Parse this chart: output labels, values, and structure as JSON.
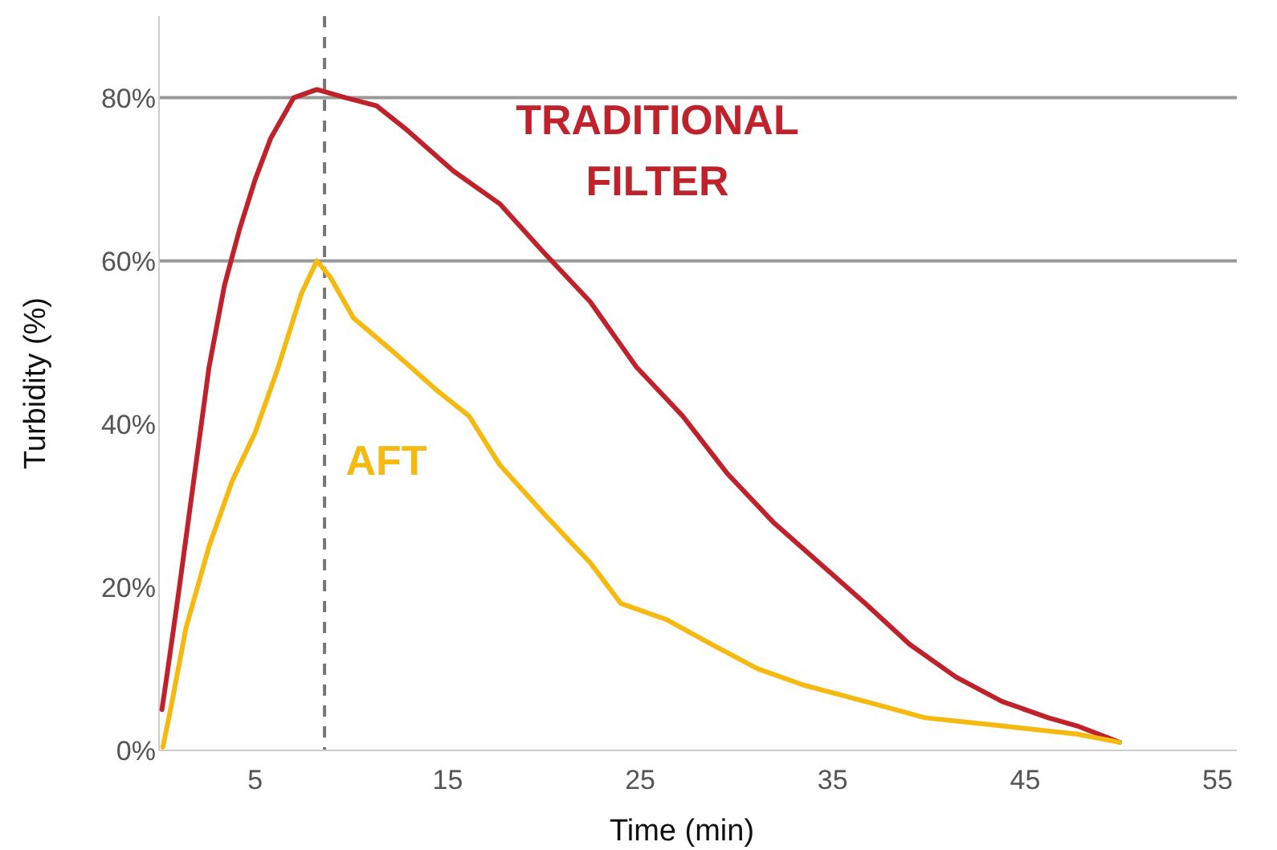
{
  "chart_data": {
    "type": "line",
    "xlabel": "Time (min)",
    "ylabel": "Turbidity (%)",
    "xlim": [
      0,
      56
    ],
    "ylim": [
      0,
      90
    ],
    "xticks": [
      5,
      15,
      25,
      35,
      45,
      55
    ],
    "yticks": [
      {
        "value": 0,
        "label": "0%"
      },
      {
        "value": 20,
        "label": "20%"
      },
      {
        "value": 40,
        "label": "40%"
      },
      {
        "value": 60,
        "label": "60%"
      },
      {
        "value": 80,
        "label": "80%"
      }
    ],
    "line_style": "solid",
    "marker": "none",
    "ref_lines": [
      {
        "axis": "y",
        "value": 60,
        "color": "#999999",
        "line_style": "solid"
      },
      {
        "axis": "y",
        "value": 80,
        "color": "#999999",
        "line_style": "solid"
      },
      {
        "axis": "x",
        "value": 8.6,
        "color": "#777777",
        "line_style": "dashed"
      }
    ],
    "series": [
      {
        "name": "TRADITIONAL FILTER",
        "color": "#c0222b",
        "x": [
          0.15,
          0.4,
          1,
          1.8,
          2.6,
          3.4,
          4.2,
          5,
          5.8,
          7,
          8.2,
          9.7,
          11.3,
          12.9,
          15.3,
          17.7,
          20,
          22.4,
          24.8,
          27.2,
          29.5,
          31.9,
          34.3,
          36.7,
          39,
          41.4,
          43.8,
          46.2,
          47.7,
          49.9
        ],
        "values": [
          5,
          9,
          19,
          33,
          47,
          57,
          64,
          70,
          75,
          80,
          81,
          80,
          79,
          76,
          71,
          67,
          61,
          55,
          47,
          41,
          34,
          28,
          23,
          18,
          13,
          9,
          6,
          4,
          3,
          1
        ]
      },
      {
        "name": "AFT",
        "color": "#f5b90f",
        "x": [
          0.2,
          0.6,
          1.4,
          2.6,
          3.8,
          5,
          6.2,
          7.4,
          8.2,
          8.9,
          10.1,
          12.1,
          14.5,
          16.1,
          17.7,
          20,
          22.4,
          24,
          26.4,
          28.7,
          31.1,
          33.5,
          36.7,
          39.8,
          43.8,
          47.7,
          49.9
        ],
        "values": [
          0.4,
          5,
          15,
          25,
          33,
          39,
          47,
          56,
          60,
          58,
          53,
          49,
          44,
          41,
          35,
          29,
          23,
          18,
          16,
          13,
          10,
          8,
          6,
          4,
          3,
          2,
          1
        ]
      }
    ]
  }
}
